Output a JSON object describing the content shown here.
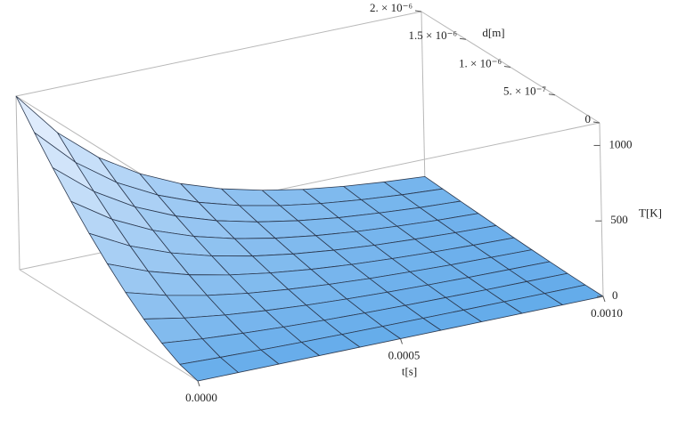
{
  "chart_data": {
    "type": "surface",
    "x_label": "t[s]",
    "y_label": "d[m]",
    "z_label": "T[K]",
    "x": [
      0,
      0.0001,
      0.0002,
      0.0003,
      0.0004,
      0.0005,
      0.0006,
      0.0007,
      0.0008,
      0.0009,
      0.001
    ],
    "y": [
      0,
      2e-07,
      4e-07,
      6e-07,
      8e-07,
      1e-06,
      1.2e-06,
      1.4e-06,
      1.6e-06,
      1.8e-06,
      2e-06
    ],
    "z": [
      [
        0,
        36,
        103,
        189,
        291,
        407,
        535,
        674,
        823,
        982,
        1150
      ],
      [
        0,
        27,
        76,
        140,
        216,
        302,
        396,
        499,
        610,
        728,
        852
      ],
      [
        0,
        20,
        57,
        104,
        160,
        223,
        294,
        370,
        452,
        539,
        631
      ],
      [
        0,
        15,
        42,
        77,
        118,
        166,
        218,
        274,
        335,
        400,
        468
      ],
      [
        0,
        11,
        31,
        57,
        88,
        123,
        161,
        203,
        248,
        296,
        346
      ],
      [
        0,
        8,
        23,
        42,
        65,
        91,
        119,
        150,
        184,
        219,
        256
      ],
      [
        0,
        6,
        17,
        31,
        48,
        67,
        88,
        111,
        136,
        162,
        190
      ],
      [
        0,
        4,
        13,
        23,
        36,
        50,
        65,
        82,
        100,
        120,
        140
      ],
      [
        0,
        3,
        9,
        17,
        26,
        37,
        49,
        61,
        75,
        89,
        104
      ],
      [
        0,
        2,
        7,
        13,
        20,
        27,
        36,
        45,
        55,
        66,
        77
      ],
      [
        0,
        2,
        5,
        9,
        14,
        20,
        27,
        34,
        41,
        49,
        57
      ]
    ],
    "xlim": [
      0,
      0.001
    ],
    "ylim": [
      0,
      2e-06
    ],
    "zlim": [
      0,
      1150
    ],
    "xticks": [
      {
        "value": 0,
        "label": "0.0000"
      },
      {
        "value": 0.0005,
        "label": "0.0005"
      },
      {
        "value": 0.001,
        "label": "0.0010"
      }
    ],
    "yticks": [
      0,
      {
        "value": 5e-07,
        "label": "5. × 10⁻⁷"
      },
      {
        "value": 1e-06,
        "label": "1. × 10⁻⁶"
      },
      {
        "value": 1.5e-06,
        "label": "1.5 × 10⁻⁶"
      },
      {
        "value": 2e-06,
        "label": "2. × 10⁻⁶"
      }
    ],
    "zticks": [
      0,
      500,
      1000
    ],
    "colormap": [
      "#63abea",
      "#f2f5ff"
    ],
    "mesh_color": "#2b3950",
    "box_color": "#b8b8b8"
  }
}
